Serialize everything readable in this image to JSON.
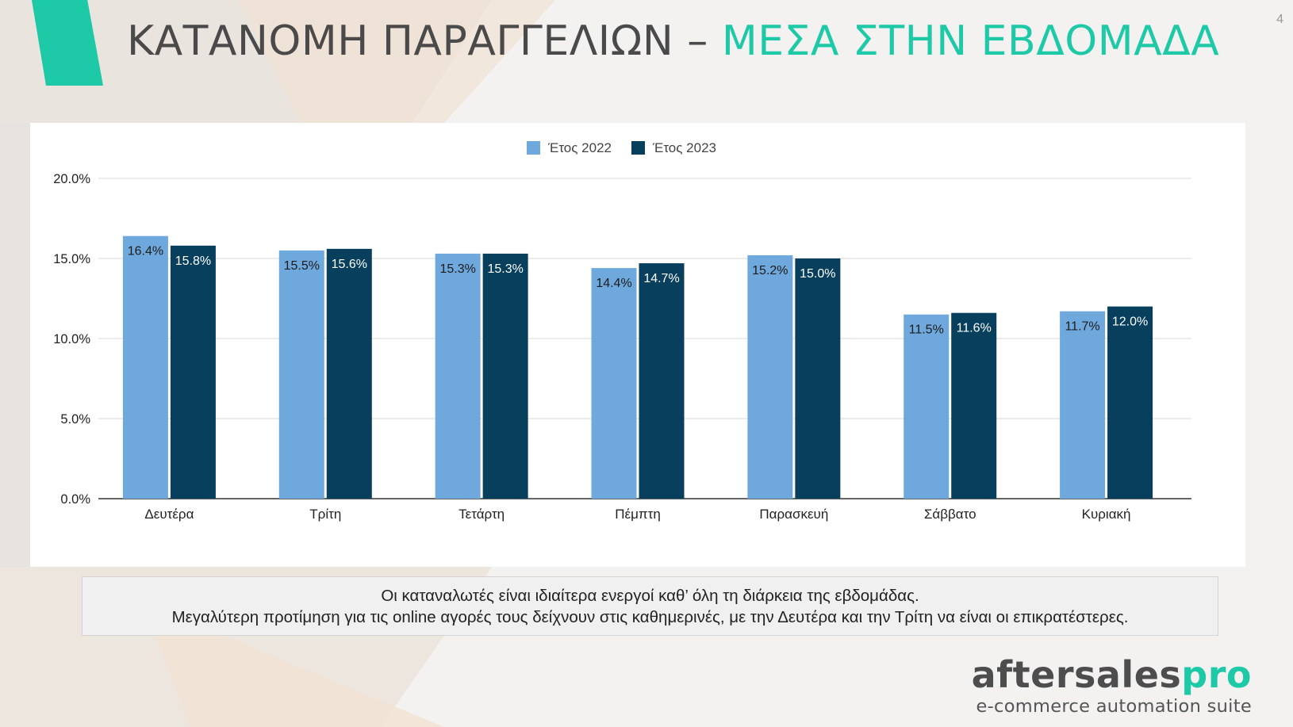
{
  "slide": {
    "page_number": "4",
    "title_main": "ΚΑΤΑΝΟΜΗ ΠΑΡΑΓΓΕΛΙΩΝ – ",
    "title_accent": "ΜΕΣΑ ΣΤΗΝ ΕΒΔΟΜΑΔΑ",
    "accent_color": "#1ec9a8"
  },
  "chart_data": {
    "type": "bar",
    "categories": [
      "Δευτέρα",
      "Τρίτη",
      "Τετάρτη",
      "Πέμπτη",
      "Παρασκευή",
      "Σάββατο",
      "Κυριακή"
    ],
    "series": [
      {
        "name": "Έτος 2022",
        "color": "#6fa8dc",
        "values": [
          16.4,
          15.5,
          15.3,
          14.4,
          15.2,
          11.5,
          11.7
        ]
      },
      {
        "name": "Έτος 2023",
        "color": "#073f5c",
        "values": [
          15.8,
          15.6,
          15.3,
          14.7,
          15.0,
          11.6,
          12.0
        ]
      }
    ],
    "ylim": [
      0,
      20
    ],
    "yticks": [
      0,
      5,
      10,
      15,
      20
    ],
    "ytick_labels": [
      "0.0%",
      "5.0%",
      "10.0%",
      "15.0%",
      "20.0%"
    ],
    "grid": true,
    "legend_position": "top-center",
    "value_label_format": "one-decimal-percent"
  },
  "caption": {
    "line1": "Οι καταναλωτές είναι ιδιαίτερα ενεργοί καθ’ όλη τη διάρκεια της εβδομάδας.",
    "line2": "Μεγαλύτερη προτίμηση για τις online αγορές τους δείχνουν στις καθημερινές, με την Δευτέρα και την Τρίτη να είναι οι επικρατέστερες."
  },
  "brand": {
    "name_main": "aftersales",
    "name_accent": "pro",
    "tagline": "e-commerce automation suite"
  }
}
